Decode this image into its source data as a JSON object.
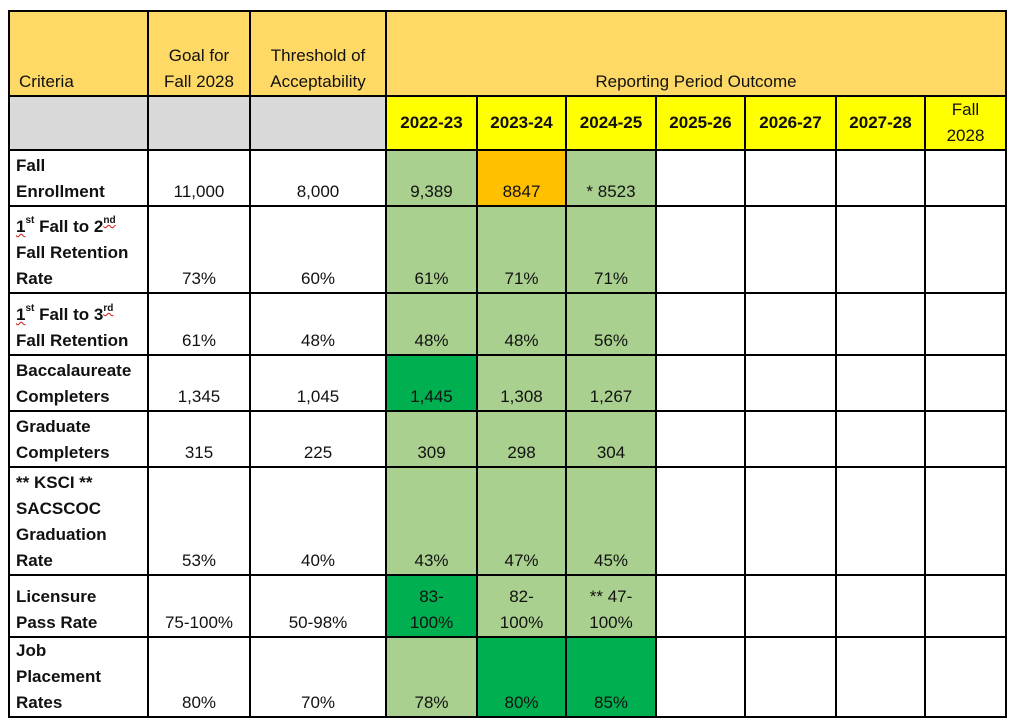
{
  "header": {
    "criteria": "Criteria",
    "goal": "Goal for Fall 2028",
    "threshold": "Threshold of Acceptability",
    "reporting": "Reporting Period Outcome"
  },
  "years": [
    "2022-23",
    "2023-24",
    "2024-25",
    "2025-26",
    "2026-27",
    "2027-28",
    "Fall 2028"
  ],
  "colors": {
    "header": "#ffd966",
    "year_highlight": "#ffff00",
    "blank_gray": "#d9d9d9",
    "light_green": "#a9d08e",
    "dark_green": "#00b050",
    "orange": "#ffc000"
  },
  "rows": [
    {
      "label_lines": [
        "Fall",
        "Enrollment"
      ],
      "goal": "11,000",
      "threshold": "8,000",
      "outcomes": [
        {
          "value": "9,389",
          "status": "light"
        },
        {
          "value": "8847",
          "status": "orange"
        },
        {
          "value": "* 8523",
          "status": "light"
        }
      ]
    },
    {
      "label_parts": {
        "n1": "1",
        "s1": "st",
        "mid": " Fall to 2",
        "s2": "nd",
        "line2": "Fall Retention",
        "line3": "Rate"
      },
      "goal": "73%",
      "threshold": "60%",
      "outcomes": [
        {
          "value": "61%",
          "status": "light"
        },
        {
          "value": "71%",
          "status": "light"
        },
        {
          "value": "71%",
          "status": "light"
        }
      ]
    },
    {
      "label_parts": {
        "n1": "1",
        "s1": "st",
        "mid": " Fall to 3",
        "s2": "rd",
        "line2": "Fall Retention"
      },
      "goal": "61%",
      "threshold": "48%",
      "outcomes": [
        {
          "value": "48%",
          "status": "light"
        },
        {
          "value": "48%",
          "status": "light"
        },
        {
          "value": "56%",
          "status": "light"
        }
      ]
    },
    {
      "label_lines": [
        "Baccalaureate",
        "Completers"
      ],
      "goal": "1,345",
      "threshold": "1,045",
      "outcomes": [
        {
          "value": "1,445",
          "status": "dark"
        },
        {
          "value": "1,308",
          "status": "light"
        },
        {
          "value": "1,267",
          "status": "light"
        }
      ]
    },
    {
      "label_lines": [
        "Graduate",
        "Completers"
      ],
      "goal": "315",
      "threshold": "225",
      "outcomes": [
        {
          "value": "309",
          "status": "light"
        },
        {
          "value": "298",
          "status": "light"
        },
        {
          "value": "304",
          "status": "light"
        }
      ]
    },
    {
      "label_lines": [
        "** KSCI **",
        "SACSCOC",
        "Graduation",
        "Rate"
      ],
      "goal": "53%",
      "threshold": "40%",
      "outcomes": [
        {
          "value": "43%",
          "status": "light"
        },
        {
          "value": "47%",
          "status": "light"
        },
        {
          "value": "45%",
          "status": "light"
        }
      ]
    },
    {
      "label_lines": [
        "Licensure",
        "Pass Rate"
      ],
      "goal": "75-100%",
      "threshold": "50-98%",
      "outcomes": [
        {
          "value_lines": [
            "83-",
            "100%"
          ],
          "status": "dark"
        },
        {
          "value_lines": [
            "82-",
            "100%"
          ],
          "status": "light"
        },
        {
          "value_lines": [
            "** 47-",
            "100%"
          ],
          "status": "light"
        }
      ]
    },
    {
      "label_lines": [
        "Job",
        "Placement",
        "Rates"
      ],
      "goal": "80%",
      "threshold": "70%",
      "outcomes": [
        {
          "value": "78%",
          "status": "light"
        },
        {
          "value": "80%",
          "status": "dark"
        },
        {
          "value": "85%",
          "status": "dark"
        }
      ]
    }
  ]
}
